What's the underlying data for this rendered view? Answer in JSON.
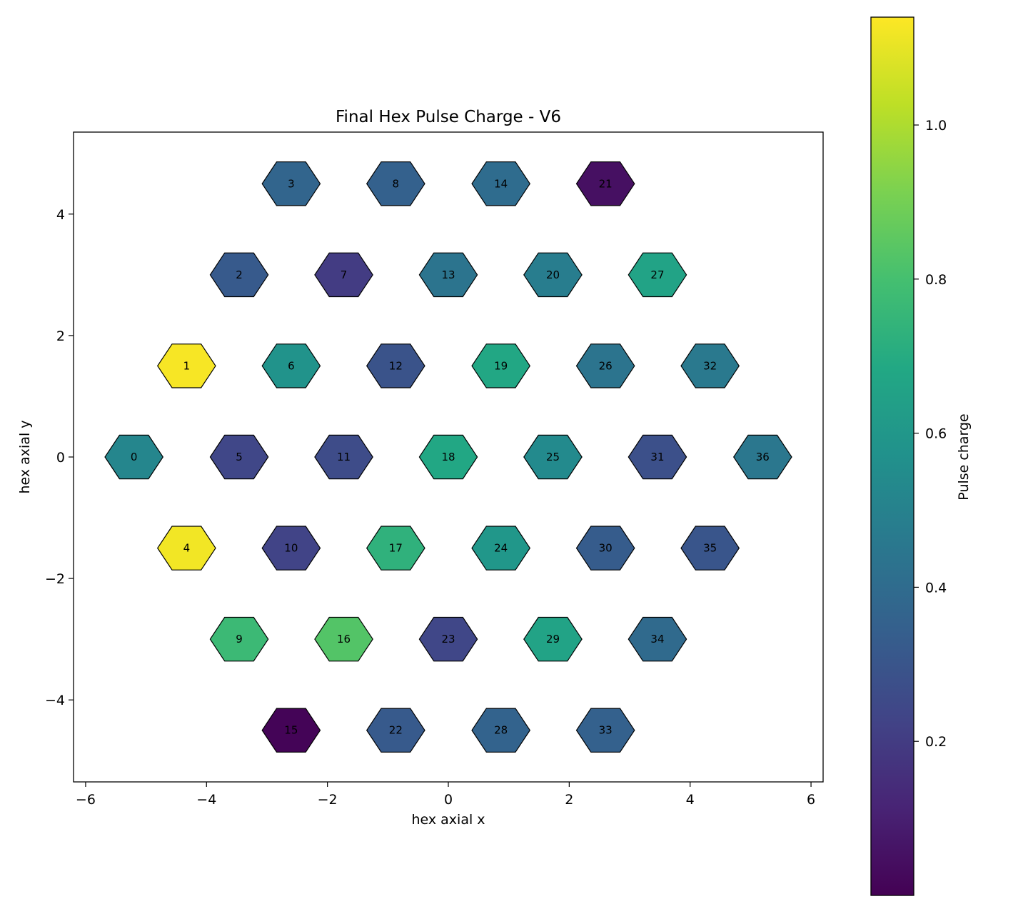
{
  "chart_data": {
    "type": "heatmap",
    "title": "Final Hex Pulse Charge - V6",
    "xlabel": "hex axial x",
    "ylabel": "hex axial y",
    "xlim": [
      -6.2,
      6.2
    ],
    "ylim": [
      -5.35,
      5.35
    ],
    "xticks": [
      -6,
      -4,
      -2,
      0,
      2,
      4,
      6
    ],
    "yticks": [
      -4,
      -2,
      0,
      2,
      4
    ],
    "colorbar": {
      "label": "Pulse charge",
      "range": [
        0.0,
        1.14
      ],
      "ticks": [
        0.2,
        0.4,
        0.6,
        0.8,
        1.0
      ],
      "colormap": "viridis"
    },
    "cells": [
      {
        "id": "0",
        "x": -5.2,
        "y": 0.0,
        "value": 0.52
      },
      {
        "id": "1",
        "x": -4.33,
        "y": 1.5,
        "value": 1.13
      },
      {
        "id": "2",
        "x": -3.46,
        "y": 3.0,
        "value": 0.32
      },
      {
        "id": "3",
        "x": -2.6,
        "y": 4.5,
        "value": 0.37
      },
      {
        "id": "4",
        "x": -4.33,
        "y": -1.5,
        "value": 1.12
      },
      {
        "id": "5",
        "x": -3.46,
        "y": 0.0,
        "value": 0.24
      },
      {
        "id": "6",
        "x": -2.6,
        "y": 1.5,
        "value": 0.58
      },
      {
        "id": "7",
        "x": -1.73,
        "y": 3.0,
        "value": 0.2
      },
      {
        "id": "8",
        "x": -0.87,
        "y": 4.5,
        "value": 0.35
      },
      {
        "id": "9",
        "x": -3.46,
        "y": -3.0,
        "value": 0.77
      },
      {
        "id": "10",
        "x": -2.6,
        "y": -1.5,
        "value": 0.23
      },
      {
        "id": "11",
        "x": -1.73,
        "y": 0.0,
        "value": 0.26
      },
      {
        "id": "12",
        "x": -0.87,
        "y": 1.5,
        "value": 0.29
      },
      {
        "id": "13",
        "x": 0.0,
        "y": 3.0,
        "value": 0.44
      },
      {
        "id": "14",
        "x": 0.87,
        "y": 4.5,
        "value": 0.4
      },
      {
        "id": "15",
        "x": -2.6,
        "y": -4.5,
        "value": 0.01
      },
      {
        "id": "16",
        "x": -1.73,
        "y": -3.0,
        "value": 0.83
      },
      {
        "id": "17",
        "x": -0.87,
        "y": -1.5,
        "value": 0.73
      },
      {
        "id": "18",
        "x": 0.0,
        "y": 0.0,
        "value": 0.68
      },
      {
        "id": "19",
        "x": 0.87,
        "y": 1.5,
        "value": 0.68
      },
      {
        "id": "20",
        "x": 1.73,
        "y": 3.0,
        "value": 0.48
      },
      {
        "id": "21",
        "x": 2.6,
        "y": 4.5,
        "value": 0.05
      },
      {
        "id": "22",
        "x": -0.87,
        "y": -4.5,
        "value": 0.32
      },
      {
        "id": "23",
        "x": 0.0,
        "y": -3.0,
        "value": 0.24
      },
      {
        "id": "24",
        "x": 0.87,
        "y": -1.5,
        "value": 0.6
      },
      {
        "id": "25",
        "x": 1.73,
        "y": 0.0,
        "value": 0.54
      },
      {
        "id": "26",
        "x": 2.6,
        "y": 1.5,
        "value": 0.44
      },
      {
        "id": "27",
        "x": 3.46,
        "y": 3.0,
        "value": 0.66
      },
      {
        "id": "28",
        "x": 0.87,
        "y": -4.5,
        "value": 0.36
      },
      {
        "id": "29",
        "x": 1.73,
        "y": -3.0,
        "value": 0.66
      },
      {
        "id": "30",
        "x": 2.6,
        "y": -1.5,
        "value": 0.33
      },
      {
        "id": "31",
        "x": 3.46,
        "y": 0.0,
        "value": 0.28
      },
      {
        "id": "32",
        "x": 4.33,
        "y": 1.5,
        "value": 0.46
      },
      {
        "id": "33",
        "x": 2.6,
        "y": -4.5,
        "value": 0.35
      },
      {
        "id": "34",
        "x": 3.46,
        "y": -3.0,
        "value": 0.39
      },
      {
        "id": "35",
        "x": 4.33,
        "y": -1.5,
        "value": 0.3
      },
      {
        "id": "36",
        "x": 5.2,
        "y": 0.0,
        "value": 0.45
      }
    ]
  }
}
